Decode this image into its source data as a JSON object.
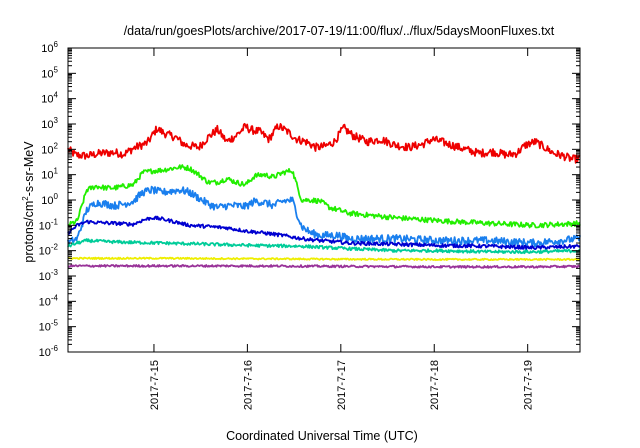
{
  "chart_data": {
    "type": "line",
    "title": "/data/run/goesPlots/archive/2017-07-19/11:00/flux/../flux/5daysMoonFluxes.txt",
    "xlabel": "Coordinated Universal Time (UTC)",
    "ylabel": {
      "pre": "protons/cm",
      "sup": "2",
      "post": "-s-sr-MeV"
    },
    "yscale": "log",
    "ylim_exponents": [
      -6,
      6
    ],
    "y_tick_exponents": [
      -6,
      -5,
      -4,
      -3,
      -2,
      -1,
      0,
      1,
      2,
      3,
      4,
      5,
      6
    ],
    "y_tick_base": "10",
    "xlim": [
      0,
      5.48
    ],
    "x_unit": "days from left edge of plot",
    "x_ticks": [
      {
        "x": 0.92,
        "label": "2017-7-15"
      },
      {
        "x": 1.92,
        "label": "2017-7-16"
      },
      {
        "x": 2.92,
        "label": "2017-7-17"
      },
      {
        "x": 3.92,
        "label": "2017-7-18"
      },
      {
        "x": 4.92,
        "label": "2017-7-19"
      }
    ],
    "grid": false,
    "legend": "none",
    "series": [
      {
        "color": "#ee0000",
        "noise": 0.16,
        "x": [
          0,
          0.08,
          0.2,
          0.35,
          0.5,
          0.6,
          0.7,
          0.85,
          0.95,
          1.05,
          1.15,
          1.25,
          1.4,
          1.5,
          1.6,
          1.7,
          1.8,
          1.9,
          1.95,
          2.05,
          2.15,
          2.25,
          2.35,
          2.45,
          2.55,
          2.65,
          2.75,
          2.85,
          2.95,
          3.05,
          3.2,
          3.35,
          3.5,
          3.65,
          3.8,
          3.9,
          4.0,
          4.1,
          4.25,
          4.4,
          4.55,
          4.7,
          4.8,
          4.9,
          5.0,
          5.1,
          5.2,
          5.3,
          5.4,
          5.48
        ],
        "y": [
          100,
          60,
          55,
          70,
          75,
          65,
          110,
          180,
          650,
          400,
          300,
          150,
          120,
          300,
          600,
          200,
          350,
          800,
          600,
          500,
          250,
          850,
          500,
          250,
          200,
          120,
          130,
          200,
          700,
          350,
          200,
          250,
          150,
          120,
          160,
          250,
          200,
          150,
          100,
          70,
          80,
          60,
          70,
          150,
          200,
          120,
          70,
          55,
          40,
          45
        ]
      },
      {
        "color": "#22ee00",
        "noise": 0.1,
        "x": [
          0,
          0.1,
          0.2,
          0.3,
          0.4,
          0.5,
          0.6,
          0.7,
          0.8,
          0.9,
          1.0,
          1.2,
          1.3,
          1.4,
          1.5,
          1.6,
          1.7,
          1.8,
          1.9,
          2.0,
          2.1,
          2.2,
          2.3,
          2.4,
          2.5,
          2.6,
          2.7,
          2.8,
          2.9,
          3.0,
          3.5,
          4.0,
          4.5,
          5.0,
          5.48
        ],
        "y": [
          0.1,
          0.15,
          2.5,
          3.5,
          3,
          3,
          3.5,
          4,
          12,
          14,
          15,
          20,
          18,
          10,
          5,
          5,
          7,
          5,
          4,
          9,
          10,
          8,
          12,
          15,
          1,
          1,
          0.9,
          0.5,
          0.4,
          0.3,
          0.2,
          0.15,
          0.12,
          0.1,
          0.12
        ]
      },
      {
        "color": "#1a7fee",
        "noise": 0.15,
        "x": [
          0,
          0.1,
          0.2,
          0.3,
          0.4,
          0.5,
          0.6,
          0.7,
          0.8,
          0.9,
          1.0,
          1.2,
          1.3,
          1.4,
          1.5,
          1.6,
          1.7,
          1.8,
          1.9,
          2.0,
          2.1,
          2.2,
          2.3,
          2.4,
          2.5,
          2.6,
          2.7,
          2.8,
          2.9,
          3.0,
          3.5,
          4.0,
          4.5,
          5.0,
          5.48
        ],
        "y": [
          0.02,
          0.03,
          0.4,
          0.8,
          0.7,
          0.6,
          0.7,
          0.9,
          2,
          2.5,
          2,
          2.5,
          2,
          1.2,
          0.7,
          0.5,
          0.6,
          0.6,
          0.55,
          0.9,
          0.8,
          0.6,
          0.9,
          1,
          0.09,
          0.05,
          0.04,
          0.04,
          0.04,
          0.03,
          0.03,
          0.025,
          0.025,
          0.02,
          0.03
        ]
      },
      {
        "color": "#0000d0",
        "noise": 0.07,
        "x": [
          0,
          0.1,
          0.2,
          0.3,
          0.5,
          0.7,
          0.8,
          0.9,
          1.0,
          1.1,
          1.3,
          1.5,
          1.7,
          1.9,
          2.1,
          2.3,
          2.5,
          2.7,
          2.9,
          3.0,
          3.5,
          4.0,
          4.5,
          5.0,
          5.48
        ],
        "y": [
          0.05,
          0.1,
          0.14,
          0.13,
          0.12,
          0.11,
          0.16,
          0.2,
          0.18,
          0.15,
          0.1,
          0.09,
          0.08,
          0.06,
          0.05,
          0.04,
          0.03,
          0.025,
          0.022,
          0.02,
          0.018,
          0.016,
          0.015,
          0.013,
          0.015
        ]
      },
      {
        "color": "#00cc99",
        "noise": 0.06,
        "x": [
          0,
          0.1,
          0.2,
          0.5,
          1.0,
          1.5,
          2.0,
          2.5,
          3.0,
          3.5,
          4.0,
          4.5,
          5.0,
          5.48
        ],
        "y": [
          0.015,
          0.02,
          0.025,
          0.022,
          0.02,
          0.018,
          0.016,
          0.015,
          0.012,
          0.01,
          0.01,
          0.009,
          0.009,
          0.01
        ]
      },
      {
        "color": "#eeee00",
        "noise": 0.03,
        "x": [
          0,
          1.0,
          2.0,
          3.0,
          4.0,
          5.0,
          5.48
        ],
        "y": [
          0.005,
          0.005,
          0.0048,
          0.0046,
          0.0045,
          0.0045,
          0.0045
        ]
      },
      {
        "color": "#993399",
        "noise": 0.04,
        "x": [
          0,
          1.0,
          2.0,
          3.0,
          4.0,
          5.0,
          5.48
        ],
        "y": [
          0.0025,
          0.0025,
          0.0025,
          0.0024,
          0.0023,
          0.0023,
          0.0024
        ]
      }
    ]
  }
}
